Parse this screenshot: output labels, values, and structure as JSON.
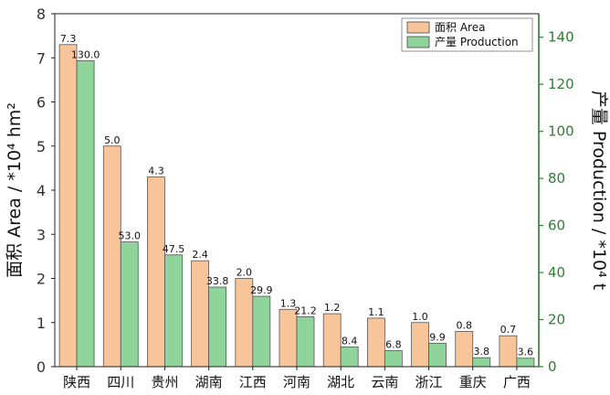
{
  "chart_data": {
    "type": "bar",
    "categories": [
      "陕西",
      "四川",
      "贵州",
      "湖南",
      "江西",
      "河南",
      "湖北",
      "云南",
      "浙江",
      "重庆",
      "广西"
    ],
    "series": [
      {
        "name": "面积 Area",
        "axis": "left",
        "color": "#f8c49a",
        "values": [
          7.3,
          5.0,
          4.3,
          2.4,
          2.0,
          1.3,
          1.2,
          1.1,
          1.0,
          0.8,
          0.7
        ],
        "labels": [
          "7.3",
          "5.0",
          "4.3",
          "2.4",
          "2.0",
          "1.3",
          "1.2",
          "1.1",
          "1.0",
          "0.8",
          "0.7"
        ]
      },
      {
        "name": "产量 Production",
        "axis": "right",
        "color": "#8fd49a",
        "values": [
          130.0,
          53.0,
          47.5,
          33.8,
          29.9,
          21.2,
          8.4,
          6.8,
          9.9,
          3.8,
          3.6
        ],
        "labels": [
          "130.0",
          "53.0",
          "47.5",
          "33.8",
          "29.9",
          "21.2",
          "8.4",
          "6.8",
          "9.9",
          "3.8",
          "3.6"
        ]
      }
    ],
    "y_left": {
      "label": "面积 Area / *10⁴ hm²",
      "ylim": [
        0,
        8
      ],
      "ticks": [
        "0",
        "1",
        "2",
        "3",
        "4",
        "5",
        "6",
        "7",
        "8"
      ]
    },
    "y_right": {
      "label": "产量 Production / *10⁴ t",
      "ylim": [
        0,
        150
      ],
      "ticks": [
        "0",
        "20",
        "40",
        "60",
        "80",
        "100",
        "120",
        "140"
      ],
      "color": "#2e7d32"
    },
    "legend_position": "top-right",
    "grid": false
  }
}
